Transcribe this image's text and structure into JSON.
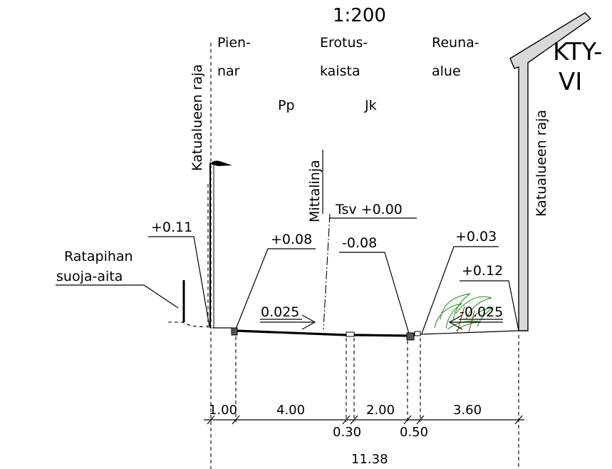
{
  "drawing": {
    "scale": "1:200",
    "sign": "KTY-\nVI",
    "sign_line1": "KTY-",
    "sign_line2": "VI",
    "zones": {
      "shoulder": [
        "Pien-",
        "nar"
      ],
      "separation": [
        "Erotus-",
        "kaista"
      ],
      "edge": [
        "Reuna-",
        "alue"
      ]
    },
    "lanes": {
      "cycle": "Pp",
      "walk": "Jk"
    },
    "boundary_label": "Katualueen raja",
    "measure_line": "Mittalinja",
    "tsv": "Tsv +0.00",
    "elevations": {
      "left_top": "+0.11",
      "pp_edge": "+0.08",
      "jk_edge": "-0.08",
      "right_a": "+0.03",
      "right_b": "+0.12"
    },
    "slopes": {
      "left": "0.025",
      "right": "-0.025"
    },
    "fence": [
      "Ratapihan",
      "suoja-aita"
    ],
    "dimensions": {
      "top": [
        "1.00",
        "4.00",
        "2.00",
        "3.60"
      ],
      "bottom": [
        "0.30",
        "0.50"
      ],
      "total": "11.38"
    },
    "colors": {
      "line": "#000000",
      "pole_fill": "#d9d9d9",
      "shrub": "#3a9a3a"
    }
  }
}
